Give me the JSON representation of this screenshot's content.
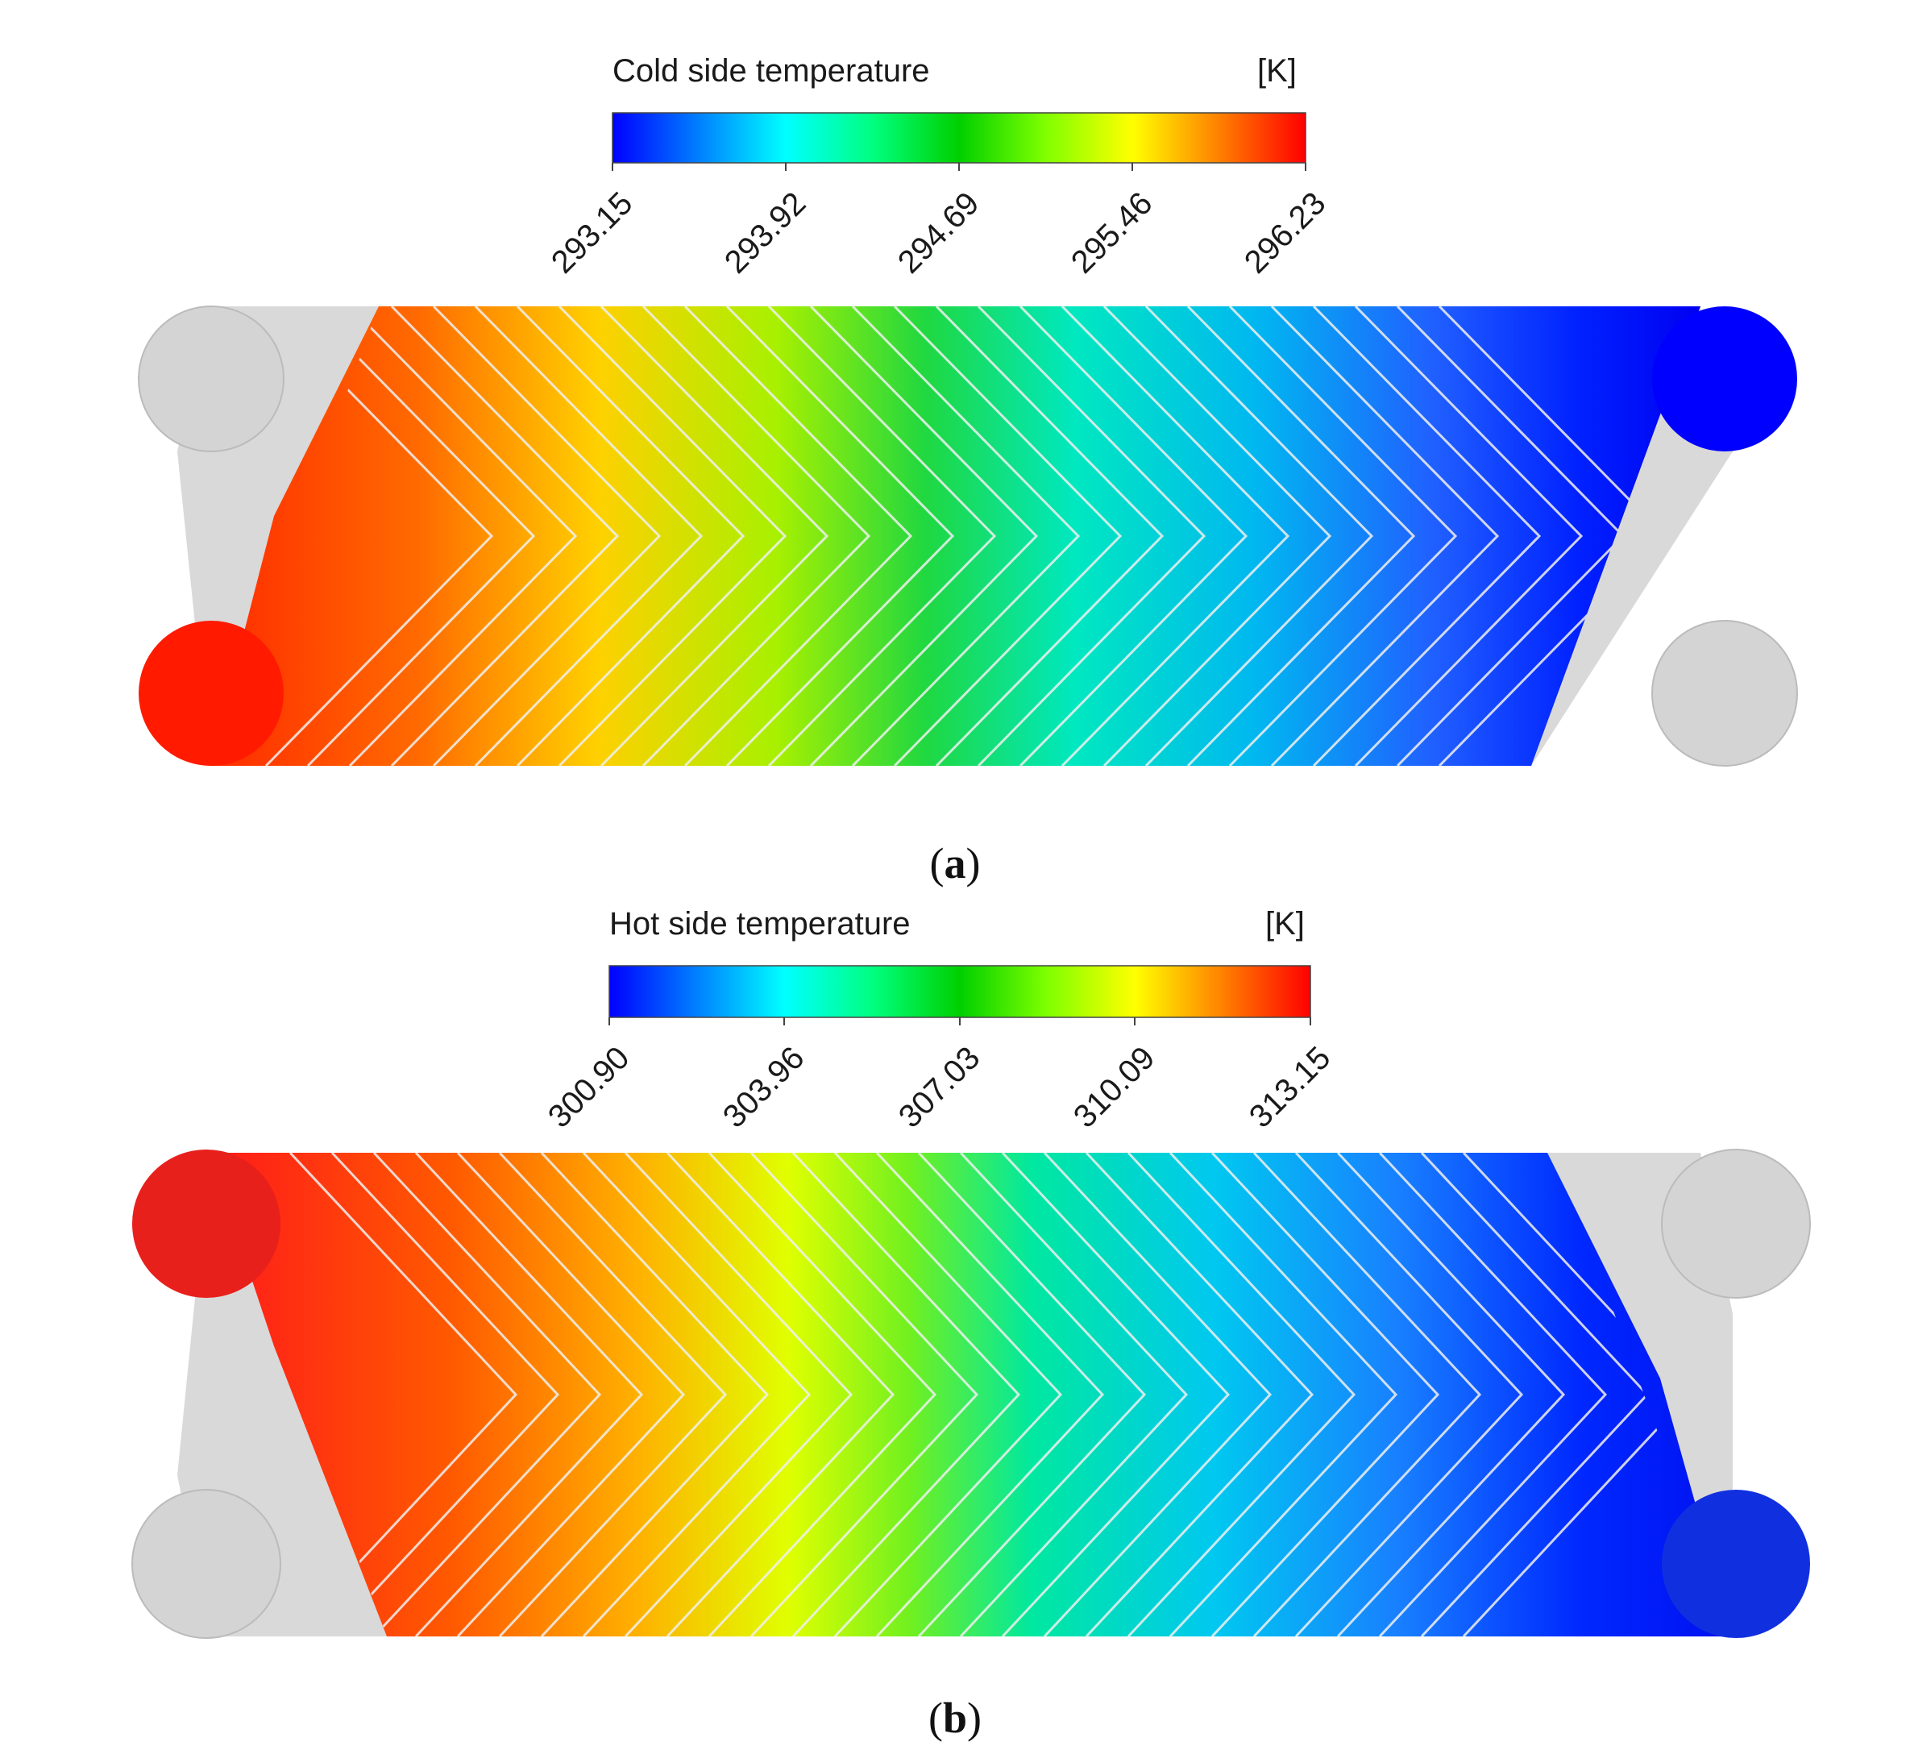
{
  "panels": [
    {
      "id": "a",
      "colorbar_title": "Cold side temperature",
      "unit": "[K]",
      "ticks": [
        "293.15",
        "293.92",
        "294.69",
        "295.46",
        "296.23"
      ],
      "caption_letter": "a",
      "hot_inlet": "bottom-left",
      "cold_outlet": "top-right"
    },
    {
      "id": "b",
      "colorbar_title": "Hot side temperature",
      "unit": "[K]",
      "ticks": [
        "300.90",
        "303.96",
        "307.03",
        "310.09",
        "313.15"
      ],
      "caption_letter": "b",
      "hot_inlet": "top-left",
      "cold_outlet": "bottom-right"
    }
  ],
  "colors": {
    "jet": [
      "#0000ff",
      "#0080ff",
      "#00ffff",
      "#00ff80",
      "#00d000",
      "#80ff00",
      "#ffff00",
      "#ff8000",
      "#ff0000"
    ],
    "port_gray": "#d4d4d4",
    "rib": "#e8e8e8"
  }
}
